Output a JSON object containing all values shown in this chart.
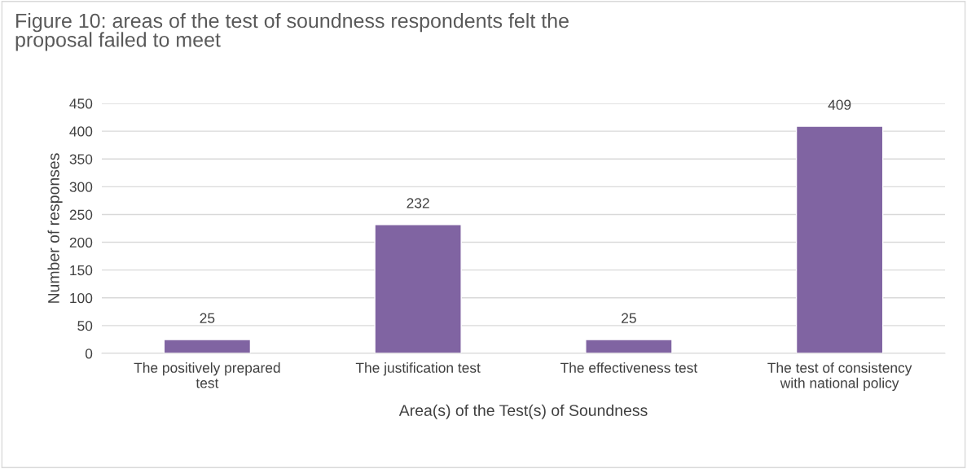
{
  "chart_data": {
    "type": "bar",
    "title": "Figure 10: areas of the test of soundness respondents felt the proposal failed to meet",
    "xlabel": "Area(s) of the Test(s) of Soundness",
    "ylabel": "Number of responses",
    "categories": [
      "The positively prepared test",
      "The justification test",
      "The effectiveness test",
      "The test of consistency with national policy"
    ],
    "values": [
      25,
      232,
      25,
      409
    ],
    "color": "#8064a2",
    "ylim": [
      0,
      450
    ],
    "yticks": [
      0,
      50,
      100,
      150,
      200,
      250,
      300,
      350,
      400,
      450
    ],
    "grid": "y",
    "data_labels": true
  }
}
